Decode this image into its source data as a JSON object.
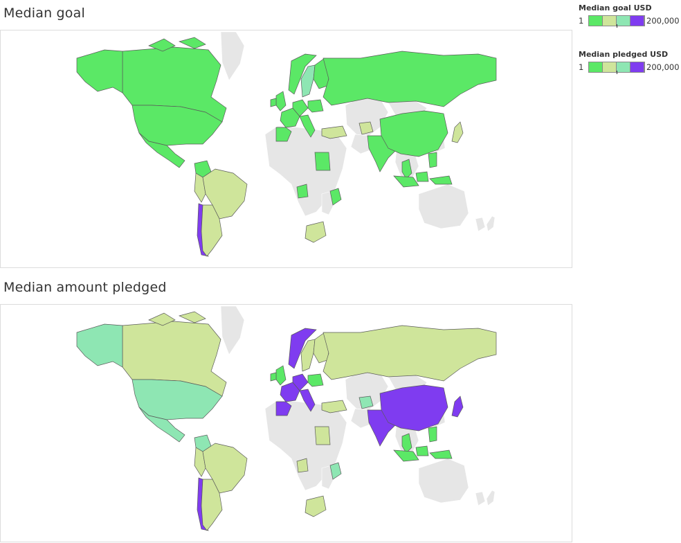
{
  "titles": {
    "goal": "Median goal",
    "pledged": "Median amount pledged"
  },
  "legends": [
    {
      "title": "Median goal USD",
      "min": "1",
      "max": "200,000"
    },
    {
      "title": "Median pledged USD",
      "min": "1",
      "max": "200,000"
    }
  ],
  "palette": {
    "no_data": "#e6e6e6",
    "low": "#5be866",
    "mid_low": "#cfe59b",
    "mid_high": "#8ee6b3",
    "high": "#7f3cf0",
    "border": "#5a5a5a"
  },
  "map_goal": {
    "United States": "low",
    "Canada": "low",
    "Alaska": "low",
    "Mexico": "low",
    "Colombia": "low",
    "Brazil": "mid_low",
    "Peru": "mid_low",
    "Argentina": "mid_low",
    "Chile": "high",
    "United Kingdom": "low",
    "Ireland": "low",
    "France": "low",
    "Spain": "low",
    "Germany": "low",
    "Italy": "low",
    "Norway": "low",
    "Sweden": "mid_high",
    "Finland": "low",
    "Poland": "low",
    "Russia": "low",
    "Turkey": "mid_low",
    "Egypt": "low",
    "Kenya": "low",
    "Nigeria": "low",
    "South Africa": "mid_low",
    "India": "low",
    "China": "low",
    "Japan": "mid_low",
    "Thailand": "low",
    "Indonesia": "low",
    "Philippines": "low",
    "Afghanistan": "mid_low"
  },
  "map_pledged": {
    "United States": "mid_high",
    "Canada": "mid_low",
    "Alaska": "mid_high",
    "Mexico": "mid_high",
    "Colombia": "mid_high",
    "Brazil": "mid_low",
    "Peru": "mid_low",
    "Argentina": "mid_low",
    "Chile": "high",
    "United Kingdom": "low",
    "Ireland": "low",
    "France": "high",
    "Spain": "high",
    "Germany": "high",
    "Italy": "high",
    "Norway": "high",
    "Sweden": "mid_low",
    "Finland": "mid_low",
    "Poland": "low",
    "Russia": "mid_low",
    "Turkey": "mid_low",
    "Egypt": "mid_low",
    "Kenya": "mid_high",
    "Nigeria": "mid_low",
    "South Africa": "mid_low",
    "India": "high",
    "China": "high",
    "Japan": "high",
    "Thailand": "low",
    "Indonesia": "low",
    "Philippines": "low",
    "Afghanistan": "mid_high"
  }
}
